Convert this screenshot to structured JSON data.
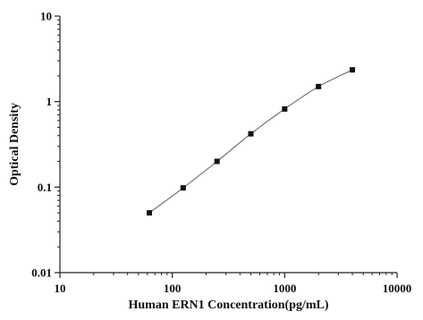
{
  "chart_data": {
    "type": "scatter",
    "title": "",
    "xlabel": "Human ERN1 Concentration(pg/mL)",
    "ylabel": "Optical Density",
    "xscale": "log",
    "yscale": "log",
    "xlim": [
      10,
      10000
    ],
    "ylim": [
      0.01,
      10
    ],
    "x_ticks": [
      "10",
      "100",
      "1000",
      "10000"
    ],
    "y_ticks": [
      "0.01",
      "0.1",
      "1",
      "10"
    ],
    "grid": false,
    "legend": "none",
    "series": [
      {
        "x": [
          62.5,
          125,
          250,
          500,
          1000,
          2000,
          4000
        ],
        "y": [
          0.05,
          0.098,
          0.2,
          0.42,
          0.82,
          1.5,
          2.35
        ],
        "marker": "square",
        "line": "smooth"
      }
    ],
    "colors": {
      "marker": "#111111",
      "line": "#666666",
      "axis": "#222222"
    }
  }
}
